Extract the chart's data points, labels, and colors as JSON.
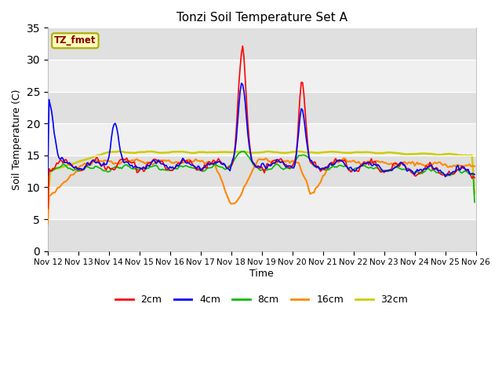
{
  "title": "Tonzi Soil Temperature Set A",
  "xlabel": "Time",
  "ylabel": "Soil Temperature (C)",
  "ylim": [
    0,
    35
  ],
  "yticks": [
    0,
    5,
    10,
    15,
    20,
    25,
    30,
    35
  ],
  "fig_bg": "#ffffff",
  "plot_bg_light": "#f0f0f0",
  "plot_bg_dark": "#e0e0e0",
  "series_colors": {
    "2cm": "#ff0000",
    "4cm": "#0000ff",
    "8cm": "#00bb00",
    "16cm": "#ff8800",
    "32cm": "#cccc00"
  },
  "legend_labels": [
    "2cm",
    "4cm",
    "8cm",
    "16cm",
    "32cm"
  ],
  "tz_fmet_label": "TZ_fmet",
  "tz_fmet_color": "#880000",
  "tz_fmet_bg": "#ffffbb",
  "tz_fmet_edge": "#aaaa00",
  "n_points": 336,
  "x_start": 0,
  "x_end": 336,
  "xtick_positions": [
    0,
    24,
    48,
    72,
    96,
    120,
    144,
    168,
    192,
    216,
    240,
    264,
    288,
    312,
    336
  ],
  "xtick_labels": [
    "Nov 12",
    "Nov 13",
    "Nov 14",
    "Nov 15",
    "Nov 16",
    "Nov 17",
    "Nov 18",
    "Nov 19",
    "Nov 20",
    "Nov 21",
    "Nov 22",
    "Nov 23",
    "Nov 24",
    "Nov 25",
    "Nov 26"
  ]
}
